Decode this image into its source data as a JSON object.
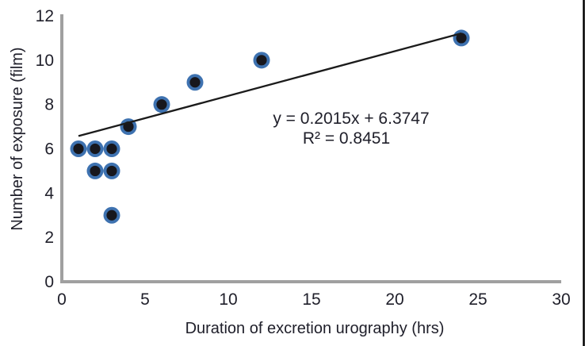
{
  "chart_data": {
    "type": "scatter",
    "title": "",
    "xlabel": "Duration of excretion urography (hrs)",
    "ylabel": "Number of exposure (film)",
    "xlim": [
      0,
      30
    ],
    "ylim": [
      0,
      12
    ],
    "x_ticks": [
      0,
      5,
      10,
      15,
      20,
      25,
      30
    ],
    "y_ticks": [
      0,
      2,
      4,
      6,
      8,
      10,
      12
    ],
    "grid": false,
    "legend": "none",
    "points": [
      {
        "x": 1,
        "y": 6
      },
      {
        "x": 2,
        "y": 6
      },
      {
        "x": 3,
        "y": 6
      },
      {
        "x": 2,
        "y": 5
      },
      {
        "x": 3,
        "y": 5
      },
      {
        "x": 3,
        "y": 3
      },
      {
        "x": 4,
        "y": 7
      },
      {
        "x": 6,
        "y": 8
      },
      {
        "x": 8,
        "y": 9
      },
      {
        "x": 12,
        "y": 10
      },
      {
        "x": 24,
        "y": 11
      }
    ],
    "trendline": {
      "slope": 0.2015,
      "intercept": 6.3747,
      "x_start": 1,
      "x_end": 24,
      "equation_label": "y = 0.2015x + 6.3747",
      "r_squared_label": "R² = 0.8451"
    },
    "colors": {
      "point_inner": "#17171d",
      "point_ring": "#3e72b0",
      "trendline": "#1b1b1b",
      "axis": "#a0a0a0",
      "text": "#20202b",
      "figure_border": "#000000"
    }
  }
}
